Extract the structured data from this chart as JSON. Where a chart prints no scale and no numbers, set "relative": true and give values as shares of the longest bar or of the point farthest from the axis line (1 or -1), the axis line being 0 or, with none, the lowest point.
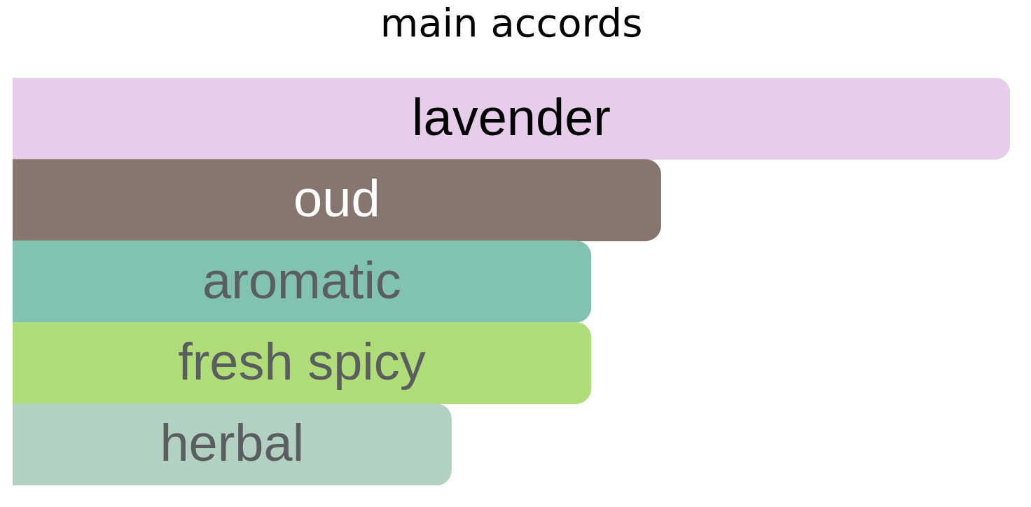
{
  "chart_data": {
    "type": "bar",
    "title": "main accords",
    "orientation": "horizontal",
    "relative": true,
    "categories": [
      "lavender",
      "oud",
      "aromatic",
      "fresh spicy",
      "herbal"
    ],
    "values": [
      1,
      0.65,
      0.58,
      0.58,
      0.44
    ],
    "colors": [
      "#e6cdea",
      "#857670",
      "#82c2b3",
      "#b0dd78",
      "#b3d1c1"
    ]
  }
}
